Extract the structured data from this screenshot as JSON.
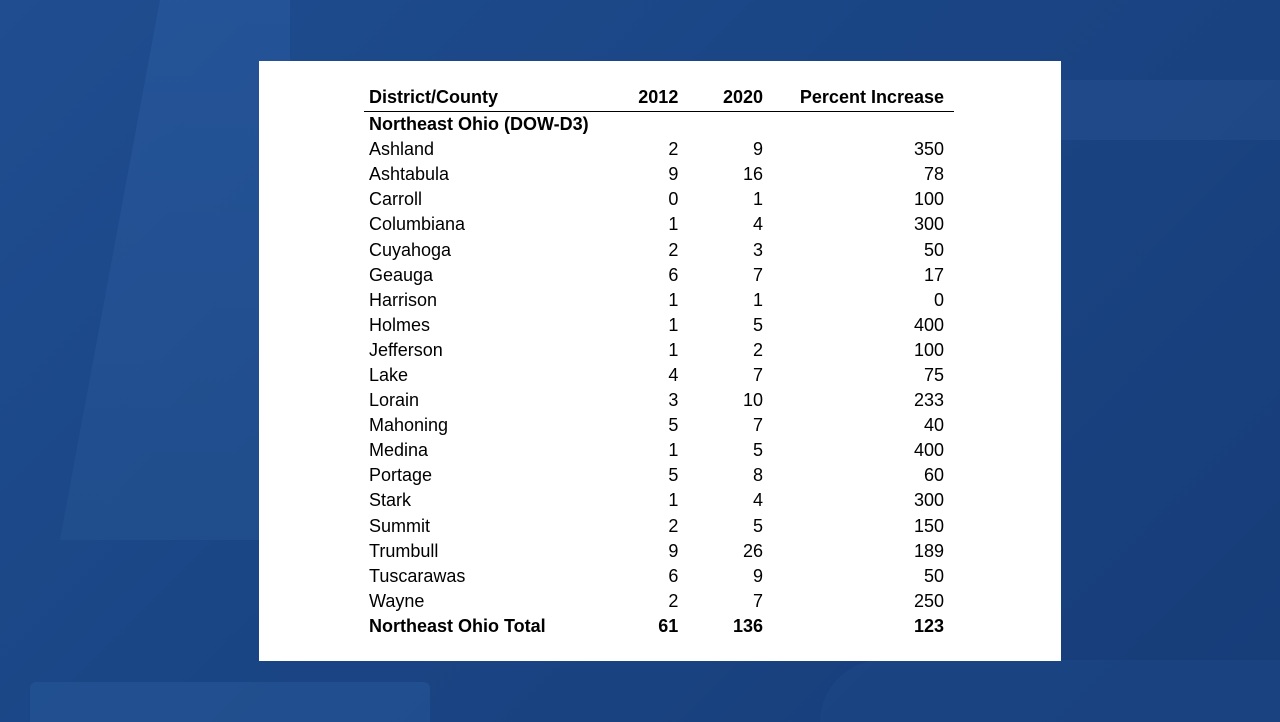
{
  "table": {
    "headers": {
      "county": "District/County",
      "y2012": "2012",
      "y2020": "2020",
      "pct": "Percent Increase"
    },
    "section_label": "Northeast Ohio (DOW-D3)",
    "rows": [
      {
        "county": "Ashland",
        "y2012": "2",
        "y2020": "9",
        "pct": "350"
      },
      {
        "county": "Ashtabula",
        "y2012": "9",
        "y2020": "16",
        "pct": "78"
      },
      {
        "county": "Carroll",
        "y2012": "0",
        "y2020": "1",
        "pct": "100"
      },
      {
        "county": "Columbiana",
        "y2012": "1",
        "y2020": "4",
        "pct": "300"
      },
      {
        "county": "Cuyahoga",
        "y2012": "2",
        "y2020": "3",
        "pct": "50"
      },
      {
        "county": "Geauga",
        "y2012": "6",
        "y2020": "7",
        "pct": "17"
      },
      {
        "county": "Harrison",
        "y2012": "1",
        "y2020": "1",
        "pct": "0"
      },
      {
        "county": "Holmes",
        "y2012": "1",
        "y2020": "5",
        "pct": "400"
      },
      {
        "county": "Jefferson",
        "y2012": "1",
        "y2020": "2",
        "pct": "100"
      },
      {
        "county": "Lake",
        "y2012": "4",
        "y2020": "7",
        "pct": "75"
      },
      {
        "county": "Lorain",
        "y2012": "3",
        "y2020": "10",
        "pct": "233"
      },
      {
        "county": "Mahoning",
        "y2012": "5",
        "y2020": "7",
        "pct": "40"
      },
      {
        "county": "Medina",
        "y2012": "1",
        "y2020": "5",
        "pct": "400"
      },
      {
        "county": "Portage",
        "y2012": "5",
        "y2020": "8",
        "pct": "60"
      },
      {
        "county": "Stark",
        "y2012": "1",
        "y2020": "4",
        "pct": "300"
      },
      {
        "county": "Summit",
        "y2012": "2",
        "y2020": "5",
        "pct": "150"
      },
      {
        "county": "Trumbull",
        "y2012": "9",
        "y2020": "26",
        "pct": "189"
      },
      {
        "county": "Tuscarawas",
        "y2012": "6",
        "y2020": "9",
        "pct": "50"
      },
      {
        "county": "Wayne",
        "y2012": "2",
        "y2020": "7",
        "pct": "250"
      }
    ],
    "total": {
      "county": "Northeast Ohio Total",
      "y2012": "61",
      "y2020": "136",
      "pct": "123"
    }
  },
  "colors": {
    "background": "#1f4d8f",
    "card": "#ffffff",
    "text": "#000000"
  }
}
